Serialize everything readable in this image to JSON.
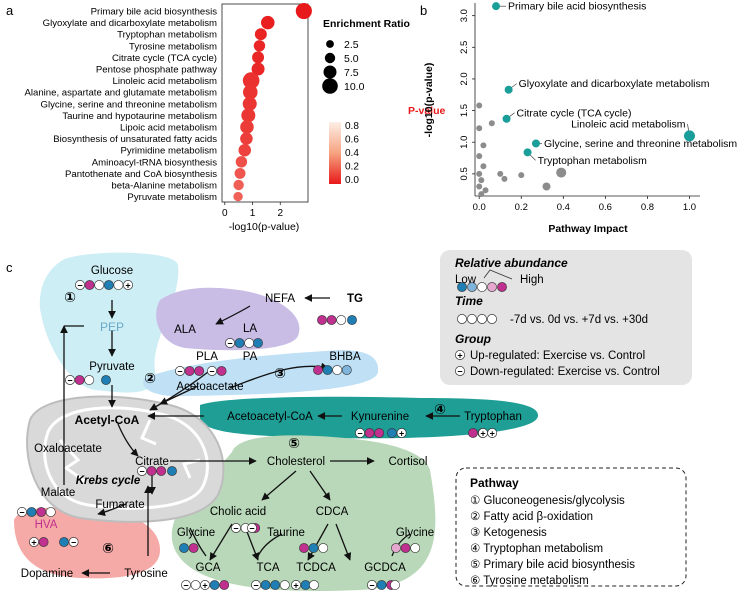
{
  "panels": {
    "a": "a",
    "b": "b",
    "c": "c"
  },
  "chart_data": [
    {
      "type": "scatter",
      "panel": "a",
      "xlabel": "-log10(p-value)",
      "ylabel": "",
      "xlim": [
        -0.1,
        3.0
      ],
      "xticks": [
        "0",
        "1",
        "2"
      ],
      "categories": [
        "Primary bile acid biosynthesis",
        "Glyoxylate and dicarboxylate metabolism",
        "Tryptophan metabolism",
        "Tyrosine metabolism",
        "Citrate cycle (TCA cycle)",
        "Pentose phosphate pathway",
        "Linoleic acid metabolism",
        "Alanine, aspartate and glutamate metabolism",
        "Glycine, serine and threonine metabolism",
        "Taurine and hypotaurine metabolism",
        "Lipoic acid metabolism",
        "Biosynthesis of unsaturated fatty acids",
        "Pyrimidine metabolism",
        "Aminoacyl-tRNA biosynthesis",
        "Pantothenate and CoA biosynthesis",
        "beta-Alanine metabolism",
        "Pyruvate metabolism"
      ],
      "x": [
        2.85,
        1.55,
        1.3,
        1.25,
        1.2,
        1.2,
        0.95,
        0.92,
        0.9,
        0.85,
        0.8,
        0.78,
        0.72,
        0.6,
        0.55,
        0.5,
        0.48
      ],
      "enrichment_ratio": [
        10.5,
        8.0,
        6.5,
        6.0,
        6.5,
        7.5,
        11.0,
        9.0,
        8.5,
        8.5,
        8.0,
        7.0,
        7.0,
        6.0,
        5.5,
        5.0,
        4.0
      ],
      "p_value": [
        0.0014,
        0.028,
        0.05,
        0.056,
        0.063,
        0.063,
        0.11,
        0.12,
        0.13,
        0.14,
        0.16,
        0.17,
        0.19,
        0.25,
        0.28,
        0.32,
        0.33
      ],
      "size_legend_title": "Enrichment Ratio",
      "size_legend": [
        "2.5",
        "5.0",
        "7.5",
        "10.0"
      ],
      "color_legend_title": "P-value",
      "color_legend_ticks": [
        "0.8",
        "0.6",
        "0.4",
        "0.2",
        "0.0"
      ],
      "colors": {
        "low_p": "#e8191a",
        "high_p": "#fde9df"
      }
    },
    {
      "type": "scatter",
      "panel": "b",
      "xlabel": "Pathway Impact",
      "ylabel": "-log10(p-value)",
      "xlim": [
        -0.02,
        1.05
      ],
      "ylim": [
        0.15,
        3.2
      ],
      "xticks": [
        "0.0",
        "0.2",
        "0.4",
        "0.6",
        "0.8",
        "1.0"
      ],
      "yticks": [
        "0.5",
        "1.0",
        "1.5",
        "2.0",
        "2.5",
        "3.0"
      ],
      "labeled_points": [
        {
          "label": "Primary bile acid biosynthesis",
          "x": 0.08,
          "y": 3.15
        },
        {
          "label": "Glyoxylate and dicarboxylate metabolism",
          "x": 0.14,
          "y": 1.83
        },
        {
          "label": "Citrate cycle (TCA cycle)",
          "x": 0.13,
          "y": 1.37
        },
        {
          "label": "Linoleic acid metabolism",
          "x": 1.0,
          "y": 1.1
        },
        {
          "label": "Glycine, serine and threonine metabolism",
          "x": 0.27,
          "y": 0.98
        },
        {
          "label": "Tryptophan metabolism",
          "x": 0.23,
          "y": 0.84
        }
      ],
      "other_points": [
        {
          "x": 0.0,
          "y": 1.58
        },
        {
          "x": 0.06,
          "y": 1.3
        },
        {
          "x": 0.0,
          "y": 1.22
        },
        {
          "x": 0.02,
          "y": 0.95
        },
        {
          "x": 0.0,
          "y": 0.78
        },
        {
          "x": 0.02,
          "y": 0.62
        },
        {
          "x": 0.0,
          "y": 0.5
        },
        {
          "x": 0.01,
          "y": 0.4
        },
        {
          "x": 0.0,
          "y": 0.3
        },
        {
          "x": 0.03,
          "y": 0.24
        },
        {
          "x": 0.1,
          "y": 0.5
        },
        {
          "x": 0.12,
          "y": 0.42
        },
        {
          "x": 0.2,
          "y": 0.48
        },
        {
          "x": 0.32,
          "y": 0.3
        },
        {
          "x": 0.39,
          "y": 0.52
        },
        {
          "x": 0.01,
          "y": 0.18
        }
      ],
      "colors": {
        "highlight": "#1a9e9a",
        "other": "#8c8c8c"
      }
    }
  ],
  "diagram": {
    "nodes": {
      "glucose": "Glucose",
      "pep": "PEP",
      "pyruvate": "Pyruvate",
      "acetyl_coa": "Acetyl-CoA",
      "nefa": "NEFA",
      "tg": "TG",
      "ala": "ALA",
      "la": "LA",
      "pla": "PLA",
      "pa": "PA",
      "bhba": "BHBA",
      "acetoacetate": "Acetoacetate",
      "acetoacetyl_coa": "Acetoacetyl-CoA",
      "kynurenine": "Kynurenine",
      "tryptophan": "Tryptophan",
      "oxaloacetate": "Oxaloacetate",
      "citrate": "Citrate",
      "krebs": "Krebs cycle",
      "malate": "Malate",
      "fumarate": "Fumarate",
      "cholesterol": "Cholesterol",
      "cortisol": "Cortisol",
      "cholic_acid": "Cholic acid",
      "cdca": "CDCA",
      "glycine": "Glycine",
      "taurine": "Taurine",
      "gca": "GCA",
      "tca": "TCA",
      "tcdca": "TCDCA",
      "gcdca": "GCDCA",
      "hva": "HVA",
      "dopamine": "Dopamine",
      "tyrosine": "Tyrosine"
    },
    "circle_numbers": [
      "①",
      "②",
      "③",
      "④",
      "⑤",
      "⑥"
    ],
    "legend": {
      "relative_abundance_title": "Relative abundance",
      "low": "Low",
      "high": "High",
      "time_title": "Time",
      "time_text": "-7d vs. 0d vs. +7d vs. +30d",
      "group_title": "Group",
      "up_text": "Up-regulated: Exercise vs. Control",
      "down_text": "Down-regulated: Exercise vs. Control"
    },
    "pathway_title": "Pathway",
    "pathways": [
      "① Gluconeogenesis/glycolysis",
      "② Fatty acid β-oxidation",
      "③ Ketogenesis",
      "④ Tryptophan metabolism",
      "⑤ Primary bile acid biosynthesis",
      "⑥ Tyrosine metabolism"
    ],
    "colors": {
      "dark_blue": "#1f7fb4",
      "blue": "#7fb5dc",
      "pink": "#e6a7cf",
      "magenta": "#c0308f",
      "region1": "#cdeef4",
      "region2": "#c9bde6",
      "region3": "#bfe0f5",
      "region4": "#1f9e96",
      "region5": "#b9d8b9",
      "region6": "#f6aaa7",
      "mito": "#dcdcdc",
      "legend_bg": "#e4e4e4"
    }
  }
}
